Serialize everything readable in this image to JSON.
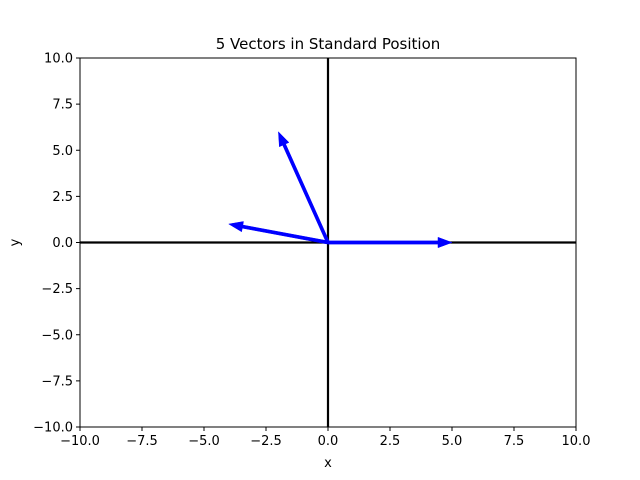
{
  "chart_data": {
    "type": "vector",
    "title": "5 Vectors in Standard Position",
    "xlabel": "x",
    "ylabel": "y",
    "xlim": [
      -10,
      10
    ],
    "ylim": [
      -10,
      10
    ],
    "x_ticks": [
      -10.0,
      -7.5,
      -5.0,
      -2.5,
      0.0,
      2.5,
      5.0,
      7.5,
      10.0
    ],
    "y_ticks": [
      -10.0,
      -7.5,
      -5.0,
      -2.5,
      0.0,
      2.5,
      5.0,
      7.5,
      10.0
    ],
    "x_tick_labels": [
      "−10.0",
      "−7.5",
      "−5.0",
      "−2.5",
      "0.0",
      "2.5",
      "5.0",
      "7.5",
      "10.0"
    ],
    "y_tick_labels": [
      "−10.0",
      "−7.5",
      "−5.0",
      "−2.5",
      "0.0",
      "2.5",
      "5.0",
      "7.5",
      "10.0"
    ],
    "grid": false,
    "axis_lines_through_origin": true,
    "vector_color": "#0000ff",
    "axis_line_color": "#000000",
    "vectors": [
      {
        "x": 0,
        "y": 0
      },
      {
        "x": 0,
        "y": 0
      },
      {
        "x": 5,
        "y": 0
      },
      {
        "x": -2,
        "y": 6
      },
      {
        "x": -4,
        "y": 1
      }
    ]
  }
}
